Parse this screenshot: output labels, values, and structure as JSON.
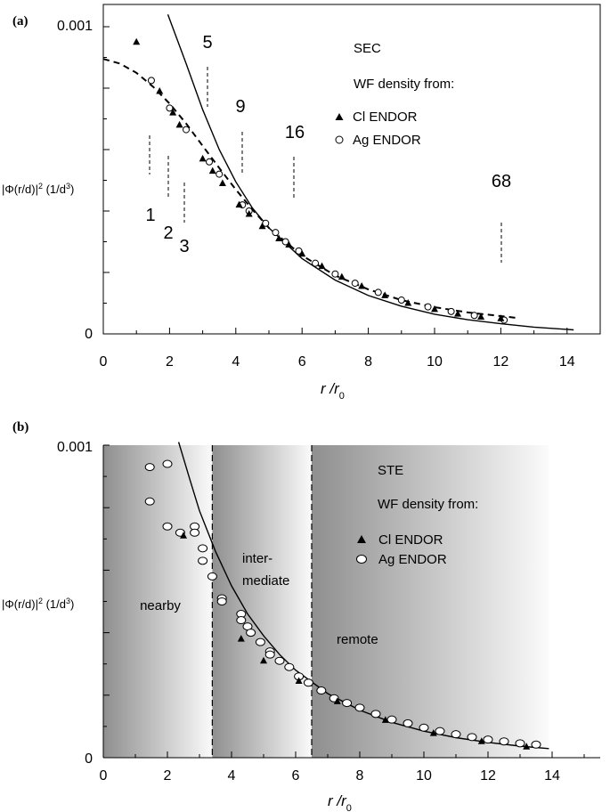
{
  "chart_data": [
    {
      "panel_label": "(a)",
      "type": "scatter",
      "title": "",
      "xlabel": "r /r",
      "xlabel_sub": "0",
      "ylabel": "|Φ(r/d)|",
      "ylabel_sup": "2",
      "ylabel_unit": " (1/d",
      "ylabel_unit_sup": "3",
      "ylabel_unit_end": ")",
      "xlim": [
        0,
        15
      ],
      "ylim": [
        0,
        0.001
      ],
      "xticks": [
        "0",
        "2",
        "4",
        "6",
        "8",
        "10",
        "12",
        "14"
      ],
      "ytick_top": "0.001",
      "ytick_bottom": "0",
      "legend": {
        "title_line1": "SEC",
        "title_line2": "WF density from:",
        "entries": [
          "Cl ENDOR",
          "Ag ENDOR"
        ]
      },
      "shell_markers": [
        {
          "label": "1",
          "x": 1.45
        },
        {
          "label": "2",
          "x": 2.0
        },
        {
          "label": "3",
          "x": 2.5
        },
        {
          "label": "5",
          "x": 3.2
        },
        {
          "label": "9",
          "x": 4.25
        },
        {
          "label": "16",
          "x": 5.85
        },
        {
          "label": "68",
          "x": 12.2
        }
      ],
      "series": [
        {
          "name": "Cl ENDOR",
          "marker": "filled-triangle",
          "points": [
            [
              1.0,
              0.00095
            ],
            [
              1.7,
              0.00079
            ],
            [
              2.1,
              0.00072
            ],
            [
              2.3,
              0.00068
            ],
            [
              3.0,
              0.00057
            ],
            [
              3.3,
              0.00053
            ],
            [
              3.6,
              0.00049
            ],
            [
              4.1,
              0.00042
            ],
            [
              4.4,
              0.00039
            ],
            [
              4.8,
              0.00035
            ],
            [
              5.3,
              0.00031
            ],
            [
              5.6,
              0.00029
            ],
            [
              6.0,
              0.00026
            ],
            [
              6.6,
              0.00022
            ],
            [
              7.2,
              0.000185
            ],
            [
              7.8,
              0.000155
            ],
            [
              8.5,
              0.000125
            ],
            [
              9.2,
              0.0001
            ],
            [
              10.0,
              8e-05
            ],
            [
              10.7,
              6.5e-05
            ],
            [
              11.4,
              5.5e-05
            ],
            [
              12.0,
              5e-05
            ]
          ]
        },
        {
          "name": "Ag ENDOR",
          "marker": "open-circle",
          "points": [
            [
              1.45,
              0.000825
            ],
            [
              2.0,
              0.000735
            ],
            [
              2.5,
              0.000665
            ],
            [
              3.2,
              0.00056
            ],
            [
              3.5,
              0.00052
            ],
            [
              4.2,
              0.00042
            ],
            [
              4.4,
              0.0004
            ],
            [
              4.9,
              0.00036
            ],
            [
              5.2,
              0.00033
            ],
            [
              5.5,
              0.0003
            ],
            [
              5.9,
              0.00027
            ],
            [
              6.4,
              0.00023
            ],
            [
              7.0,
              0.000195
            ],
            [
              7.6,
              0.000165
            ],
            [
              8.3,
              0.000135
            ],
            [
              9.0,
              0.00011
            ],
            [
              9.8,
              8.8e-05
            ],
            [
              10.5,
              7.3e-05
            ],
            [
              11.2,
              6e-05
            ],
            [
              12.1,
              4.5e-05
            ]
          ]
        },
        {
          "name": "",
          "style": "dashed",
          "points": [
            [
              0,
              0.000895
            ],
            [
              0.5,
              0.00088
            ],
            [
              1.0,
              0.00085
            ],
            [
              1.5,
              0.000805
            ],
            [
              2.0,
              0.00075
            ],
            [
              2.5,
              0.000685
            ],
            [
              3.0,
              0.000612
            ],
            [
              3.5,
              0.00054
            ],
            [
              4.0,
              0.00047
            ],
            [
              4.5,
              0.000405
            ],
            [
              5.0,
              0.000345
            ],
            [
              6.0,
              0.000255
            ],
            [
              7.0,
              0.00019
            ],
            [
              8.0,
              0.000145
            ],
            [
              9.0,
              0.00011
            ],
            [
              10.0,
              8.7e-05
            ],
            [
              11.0,
              7e-05
            ],
            [
              12.0,
              5.8e-05
            ],
            [
              12.5,
              5.2e-05
            ]
          ]
        },
        {
          "name": "",
          "style": "solid",
          "points": [
            [
              1.95,
              0.00104
            ],
            [
              2.5,
              0.00088
            ],
            [
              3.0,
              0.00073
            ],
            [
              3.5,
              0.0006
            ],
            [
              4.0,
              0.000495
            ],
            [
              4.5,
              0.00041
            ],
            [
              5.0,
              0.000345
            ],
            [
              6.0,
              0.000245
            ],
            [
              7.0,
              0.000175
            ],
            [
              8.0,
              0.000125
            ],
            [
              9.0,
              9e-05
            ],
            [
              10.0,
              6.4e-05
            ],
            [
              11.0,
              4.6e-05
            ],
            [
              12.0,
              3.3e-05
            ],
            [
              13.0,
              2.2e-05
            ],
            [
              14.2,
              1.3e-05
            ]
          ]
        }
      ]
    },
    {
      "panel_label": "(b)",
      "type": "scatter",
      "title": "",
      "xlabel": "r /r",
      "xlabel_sub": "0",
      "ylabel": "|Φ(r/d)|",
      "ylabel_sup": "2",
      "ylabel_unit": " (1/d",
      "ylabel_unit_sup": "3",
      "ylabel_unit_end": ")",
      "xlim": [
        0,
        15.5
      ],
      "ylim": [
        0,
        0.001
      ],
      "xticks": [
        "0",
        "2",
        "4",
        "6",
        "8",
        "10",
        "12",
        "14"
      ],
      "ytick_top": "0.001",
      "ytick_bottom": "0",
      "legend": {
        "title_line1": "STE",
        "title_line2": "WF density from:",
        "entries": [
          "Cl ENDOR",
          "Ag ENDOR"
        ]
      },
      "regions": [
        {
          "label": "nearby",
          "x0": 0,
          "x1": 3.4
        },
        {
          "label_line1": "inter-",
          "label_line2": "mediate",
          "x0": 3.4,
          "x1": 6.5
        },
        {
          "label": "remote",
          "x0": 6.5,
          "x1": 13.9
        }
      ],
      "region_boundaries": [
        3.4,
        6.5
      ],
      "series": [
        {
          "name": "Cl ENDOR",
          "marker": "filled-triangle",
          "points": [
            [
              2.5,
              0.00071
            ],
            [
              4.3,
              0.00038
            ],
            [
              5.0,
              0.00031
            ],
            [
              6.1,
              0.000245
            ],
            [
              7.3,
              0.00018
            ],
            [
              8.8,
              0.00012
            ],
            [
              10.3,
              7.8e-05
            ],
            [
              11.8,
              5.2e-05
            ],
            [
              13.2,
              3.5e-05
            ]
          ]
        },
        {
          "name": "Ag ENDOR",
          "marker": "open-circle",
          "points": [
            [
              1.45,
              0.00093
            ],
            [
              2.0,
              0.00094
            ],
            [
              1.45,
              0.00082
            ],
            [
              2.0,
              0.00074
            ],
            [
              2.4,
              0.00072
            ],
            [
              2.85,
              0.00074
            ],
            [
              2.85,
              0.00072
            ],
            [
              3.1,
              0.00067
            ],
            [
              3.1,
              0.00063
            ],
            [
              3.4,
              0.00058
            ],
            [
              3.7,
              0.00051
            ],
            [
              3.7,
              0.0005
            ],
            [
              4.3,
              0.00046
            ],
            [
              4.3,
              0.00044
            ],
            [
              4.5,
              0.00042
            ],
            [
              4.6,
              0.0004
            ],
            [
              4.9,
              0.00037
            ],
            [
              5.2,
              0.00034
            ],
            [
              5.2,
              0.00033
            ],
            [
              5.5,
              0.00031
            ],
            [
              5.8,
              0.00029
            ],
            [
              6.1,
              0.00026
            ],
            [
              6.4,
              0.00024
            ],
            [
              6.8,
              0.000215
            ],
            [
              7.2,
              0.00019
            ],
            [
              7.6,
              0.000175
            ],
            [
              8.0,
              0.00016
            ],
            [
              8.5,
              0.00014
            ],
            [
              9.0,
              0.000122
            ],
            [
              9.5,
              0.00011
            ],
            [
              10.0,
              9.6e-05
            ],
            [
              10.5,
              8.5e-05
            ],
            [
              11.0,
              7.5e-05
            ],
            [
              11.5,
              6.6e-05
            ],
            [
              12.0,
              5.8e-05
            ],
            [
              12.5,
              5.2e-05
            ],
            [
              13.0,
              4.6e-05
            ],
            [
              13.5,
              4.2e-05
            ]
          ]
        },
        {
          "name": "",
          "style": "solid",
          "points": [
            [
              2.35,
              0.00101
            ],
            [
              2.7,
              0.00089
            ],
            [
              3.0,
              0.00079
            ],
            [
              3.5,
              0.00066
            ],
            [
              4.0,
              0.00055
            ],
            [
              4.5,
              0.00046
            ],
            [
              5.0,
              0.00039
            ],
            [
              5.5,
              0.00033
            ],
            [
              6.0,
              0.00028
            ],
            [
              7.0,
              0.000205
            ],
            [
              8.0,
              0.000152
            ],
            [
              9.0,
              0.000113
            ],
            [
              10.0,
              8.5e-05
            ],
            [
              11.0,
              6.4e-05
            ],
            [
              12.0,
              4.9e-05
            ],
            [
              13.0,
              3.7e-05
            ],
            [
              13.9,
              2.9e-05
            ]
          ]
        }
      ]
    }
  ]
}
